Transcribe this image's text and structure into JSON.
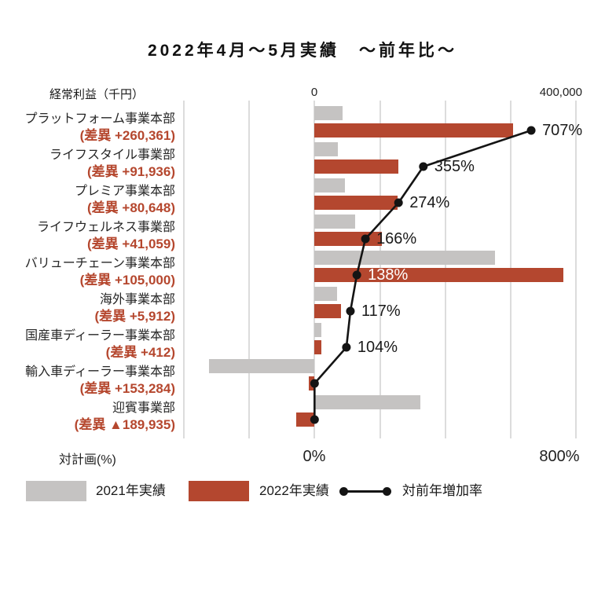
{
  "title": "2022年4月～5月実績　～前年比～",
  "top_axis": {
    "label": "経常利益（千円）",
    "zero_label": "0",
    "max_label": "400,000"
  },
  "bottom_axis": {
    "label": "対計画(%)",
    "zero_label": "0%",
    "max_label": "800%"
  },
  "legend": [
    {
      "label": "2021年実績",
      "kind": "bar-gray"
    },
    {
      "label": "2022年実績",
      "kind": "bar-red"
    },
    {
      "label": "対前年増加率",
      "kind": "line"
    }
  ],
  "colors": {
    "bar_2021": "#c5c3c2",
    "bar_2022": "#b4472f",
    "rate_line": "#141414",
    "gridline": "#dcdcdc",
    "diff_text": "#b5472e"
  },
  "chart_data": {
    "type": "bar",
    "orientation": "horizontal",
    "title": "2022年4月～5月実績　～前年比～",
    "value_axis": {
      "unit": "千円",
      "min": -200000,
      "max": 400000,
      "gridline_step": 100000,
      "shown_ticks": [
        "0",
        "400,000"
      ]
    },
    "rate_axis": {
      "unit": "%",
      "min": 0,
      "max": 800,
      "shown_ticks": [
        "0%",
        "800%"
      ]
    },
    "grid": true,
    "legend_position": "bottom",
    "categories": [
      "プラットフォーム事業本部",
      "ライフスタイル事業部",
      "プレミア事業本部",
      "ライフウェルネス事業部",
      "バリューチェーン事業本部",
      "海外事業本部",
      "国産車ディーラー事業本部",
      "輸入車ディーラー事業本部",
      "迎賓事業部"
    ],
    "diff_labels": [
      "(差異 +260,361)",
      "(差異 +91,936)",
      "(差異 +80,648)",
      "(差異 +41,059)",
      "(差異 +105,000)",
      "(差異 +5,912)",
      "(差異 +412)",
      "(差異 +153,284)",
      "(差異 ▲189,935)"
    ],
    "series": [
      {
        "name": "2021年実績",
        "values": [
          42890,
          36053,
          46350,
          62211,
          276316,
          34776,
          10300,
          -162000,
          162000
        ]
      },
      {
        "name": "2022年実績",
        "values": [
          303251,
          127989,
          126998,
          103270,
          381316,
          40688,
          10712,
          -8716,
          -27935
        ]
      }
    ],
    "line_series": {
      "name": "対前年増加率",
      "values": [
        707,
        355,
        274,
        166,
        138,
        117,
        104,
        null,
        null
      ],
      "labels": [
        "707%",
        "355%",
        "274%",
        "166%",
        "138%",
        "117%",
        "104%",
        "",
        ""
      ],
      "label_inside_bar": [
        false,
        false,
        false,
        false,
        true,
        false,
        false,
        false,
        false
      ]
    }
  }
}
